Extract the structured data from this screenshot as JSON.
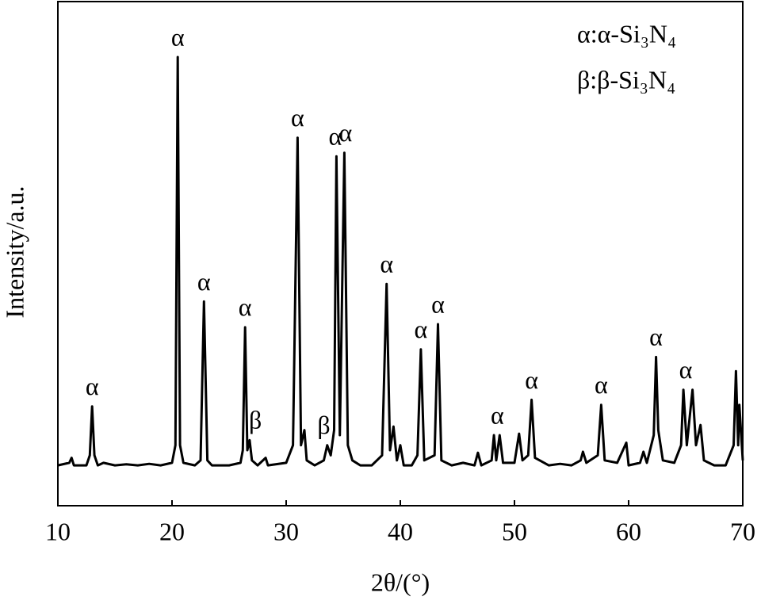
{
  "chart_data": {
    "type": "line",
    "x_label": "2θ/(°)",
    "y_label": "Intensity/a.u.",
    "legend_text": [
      "α:α-Si₃N₄",
      "β:β-Si₃N₄"
    ],
    "xlim": [
      10,
      70
    ],
    "xticks": [
      10,
      20,
      30,
      40,
      50,
      60,
      70
    ],
    "ylim": [
      0,
      100
    ],
    "series": [
      {
        "color": "#000000",
        "x": [
          10.0,
          11.0,
          11.2,
          11.4,
          12.5,
          12.8,
          13.0,
          13.2,
          13.5,
          14,
          15,
          16,
          17,
          18,
          19,
          20.0,
          20.3,
          20.5,
          20.7,
          21.0,
          22.0,
          22.5,
          22.8,
          23.1,
          23.5,
          25,
          26.0,
          26.2,
          26.4,
          26.6,
          26.8,
          27.0,
          27.5,
          28.2,
          28.4,
          30.0,
          30.6,
          31.0,
          31.3,
          31.6,
          31.8,
          32.5,
          33.3,
          33.6,
          33.9,
          34.2,
          34.4,
          34.7,
          35.1,
          35.4,
          35.8,
          36.5,
          37.5,
          38.4,
          38.8,
          39.1,
          39.4,
          39.7,
          40.0,
          40.3,
          41.0,
          41.5,
          41.8,
          42.1,
          43.0,
          43.3,
          43.6,
          44.5,
          45.5,
          46.5,
          46.8,
          47.1,
          48.0,
          48.2,
          48.4,
          48.7,
          49.0,
          50.0,
          50.4,
          50.7,
          51.2,
          51.5,
          51.8,
          53,
          54,
          55,
          55.8,
          56.0,
          56.3,
          57.3,
          57.6,
          57.9,
          59,
          59.8,
          60.0,
          61.0,
          61.3,
          61.6,
          62.2,
          62.4,
          62.6,
          63.0,
          64.0,
          64.6,
          64.8,
          65.1,
          65.6,
          65.9,
          66.3,
          66.6,
          67.5,
          68.5,
          69.2,
          69.4,
          69.6,
          69.7,
          70
        ],
        "values": [
          8,
          8.5,
          9.5,
          8,
          8,
          10,
          19.7,
          10,
          8,
          8.5,
          8,
          8.2,
          8,
          8.3,
          8,
          8.5,
          12,
          89,
          12,
          8.5,
          8,
          9,
          40.5,
          9,
          8,
          8,
          8.5,
          11,
          35.4,
          11,
          13,
          9,
          8,
          9.5,
          8,
          8.5,
          12,
          73,
          12,
          15,
          9,
          8,
          9,
          12,
          10,
          15,
          69.3,
          14,
          70,
          12,
          9,
          8,
          8,
          10,
          44,
          11,
          15.7,
          9,
          12,
          8,
          8,
          10,
          31,
          9,
          10,
          36,
          9,
          8,
          8.5,
          8,
          10.5,
          8,
          9,
          14,
          9,
          14,
          8.5,
          8.5,
          14.3,
          9,
          10,
          21,
          9.5,
          8,
          8.3,
          8,
          9,
          10.7,
          8.5,
          10,
          20,
          9,
          8.5,
          12.5,
          8,
          8.5,
          10.7,
          8.5,
          14,
          29.5,
          15,
          9,
          8.5,
          12,
          23,
          12,
          23,
          12,
          16,
          9,
          8,
          8,
          12,
          26.7,
          12,
          20,
          9
        ]
      }
    ],
    "annotations": [
      {
        "label": "α",
        "x": 13.0,
        "y": 19.7
      },
      {
        "label": "α",
        "x": 20.5,
        "y": 89
      },
      {
        "label": "α",
        "x": 22.8,
        "y": 40.5
      },
      {
        "label": "α",
        "x": 26.4,
        "y": 35.4
      },
      {
        "label": "β",
        "x": 27.3,
        "y": 13
      },
      {
        "label": "α",
        "x": 31.0,
        "y": 73
      },
      {
        "label": "β",
        "x": 33.3,
        "y": 12
      },
      {
        "label": "α",
        "x": 34.3,
        "y": 69.3
      },
      {
        "label": "α",
        "x": 35.2,
        "y": 70
      },
      {
        "label": "α",
        "x": 38.8,
        "y": 44
      },
      {
        "label": "α",
        "x": 41.8,
        "y": 31
      },
      {
        "label": "α",
        "x": 43.3,
        "y": 36
      },
      {
        "label": "α",
        "x": 48.5,
        "y": 14
      },
      {
        "label": "α",
        "x": 51.5,
        "y": 21
      },
      {
        "label": "α",
        "x": 57.6,
        "y": 20
      },
      {
        "label": "α",
        "x": 62.4,
        "y": 29.5
      },
      {
        "label": "α",
        "x": 65.0,
        "y": 23
      }
    ]
  }
}
